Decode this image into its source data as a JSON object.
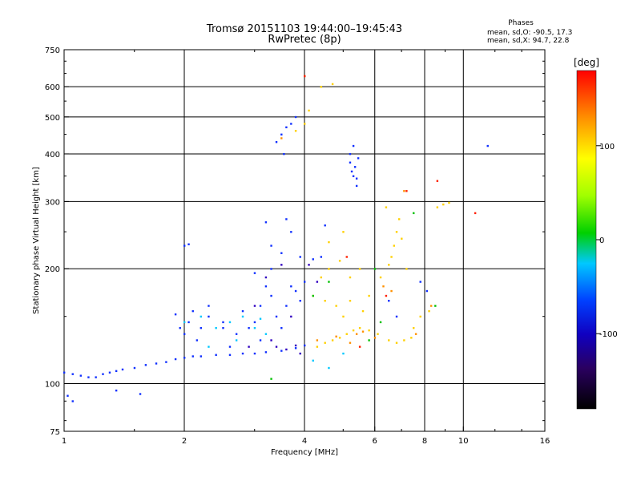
{
  "chart_data": {
    "type": "scatter",
    "title": "Tromsø 20151103 19:44:00–19:45:43",
    "subtitle": "RwPretec (8p)",
    "xlabel": "Frequency [MHz]",
    "ylabel": "Stationary phase Virtual Height [km]",
    "x_scale": "log2",
    "y_scale": "log",
    "xlim": [
      1,
      16
    ],
    "ylim": [
      75,
      750
    ],
    "xticks": [
      1,
      2,
      4,
      6,
      8,
      10,
      16
    ],
    "yticks": [
      75,
      100,
      200,
      300,
      400,
      500,
      600,
      750
    ],
    "grid_x": [
      2,
      4,
      6,
      8,
      10
    ],
    "grid_y": [
      100,
      200,
      300,
      400,
      500,
      600
    ],
    "stats": {
      "header": "Phases",
      "line_o": "mean, sd,O: -90.5, 17.3",
      "line_x": "mean, sd,X: 94.7, 22.8"
    },
    "colorbar": {
      "label": "[deg]",
      "range": [
        -180,
        180
      ],
      "ticks": [
        "100",
        "0",
        "-100"
      ],
      "tick_values": [
        100,
        0,
        -100
      ]
    },
    "series": [
      {
        "color": "#1030ff",
        "phase": -100,
        "points": [
          [
            1.0,
            107
          ],
          [
            1.05,
            106
          ],
          [
            1.1,
            105
          ],
          [
            1.15,
            104
          ],
          [
            1.2,
            104
          ],
          [
            1.25,
            106
          ],
          [
            1.3,
            107
          ],
          [
            1.35,
            108
          ],
          [
            1.4,
            109
          ],
          [
            1.5,
            110
          ],
          [
            1.6,
            112
          ],
          [
            1.7,
            113
          ],
          [
            1.8,
            114
          ],
          [
            1.9,
            116
          ],
          [
            2.0,
            117
          ],
          [
            2.1,
            118
          ],
          [
            2.2,
            118
          ],
          [
            2.4,
            119
          ],
          [
            2.6,
            119
          ],
          [
            2.8,
            120
          ],
          [
            3.0,
            120
          ],
          [
            3.2,
            121
          ],
          [
            3.5,
            122
          ],
          [
            3.8,
            124
          ],
          [
            4.0,
            126
          ],
          [
            1.02,
            93
          ],
          [
            1.05,
            90
          ],
          [
            1.35,
            96
          ],
          [
            1.55,
            94
          ],
          [
            1.9,
            152
          ],
          [
            1.95,
            140
          ],
          [
            2.0,
            135
          ],
          [
            2.05,
            145
          ],
          [
            2.1,
            155
          ],
          [
            2.15,
            130
          ],
          [
            2.3,
            150
          ],
          [
            2.5,
            140
          ],
          [
            2.7,
            135
          ],
          [
            2.9,
            140
          ],
          [
            3.0,
            145
          ],
          [
            3.1,
            160
          ],
          [
            3.2,
            180
          ],
          [
            3.3,
            170
          ],
          [
            3.4,
            150
          ],
          [
            3.5,
            140
          ],
          [
            3.6,
            160
          ],
          [
            3.7,
            180
          ],
          [
            3.8,
            175
          ],
          [
            3.9,
            165
          ],
          [
            4.0,
            185
          ],
          [
            3.3,
            200
          ],
          [
            3.5,
            220
          ],
          [
            3.7,
            250
          ],
          [
            3.9,
            215
          ],
          [
            4.2,
            212
          ],
          [
            4.4,
            215
          ],
          [
            3.2,
            265
          ],
          [
            3.6,
            270
          ],
          [
            2.0,
            230
          ],
          [
            2.05,
            232
          ],
          [
            3.4,
            430
          ],
          [
            3.5,
            450
          ],
          [
            3.6,
            470
          ],
          [
            3.7,
            480
          ],
          [
            3.8,
            500
          ],
          [
            3.55,
            400
          ],
          [
            5.2,
            380
          ],
          [
            5.25,
            360
          ],
          [
            5.3,
            350
          ],
          [
            5.35,
            370
          ],
          [
            5.4,
            345
          ],
          [
            5.45,
            390
          ],
          [
            5.2,
            400
          ],
          [
            5.3,
            420
          ],
          [
            5.4,
            330
          ],
          [
            2.5,
            145
          ],
          [
            2.8,
            155
          ],
          [
            3.1,
            130
          ],
          [
            4.5,
            260
          ],
          [
            2.3,
            160
          ],
          [
            2.6,
            125
          ],
          [
            2.2,
            140
          ],
          [
            3.0,
            195
          ],
          [
            3.3,
            230
          ],
          [
            8.1,
            175
          ],
          [
            7.8,
            185
          ],
          [
            6.5,
            165
          ],
          [
            6.8,
            150
          ],
          [
            11.5,
            420
          ]
        ]
      },
      {
        "color": "#3000c0",
        "phase": -135,
        "points": [
          [
            3.4,
            125
          ],
          [
            3.6,
            123
          ],
          [
            3.8,
            126
          ],
          [
            3.2,
            190
          ],
          [
            3.5,
            205
          ],
          [
            3.7,
            150
          ],
          [
            3.9,
            120
          ],
          [
            4.1,
            205
          ],
          [
            4.3,
            185
          ],
          [
            3.3,
            130
          ],
          [
            2.9,
            125
          ],
          [
            3.0,
            160
          ]
        ]
      },
      {
        "color": "#ffd000",
        "phase": 100,
        "points": [
          [
            4.3,
            125
          ],
          [
            4.5,
            128
          ],
          [
            4.7,
            130
          ],
          [
            4.9,
            132
          ],
          [
            5.1,
            135
          ],
          [
            5.3,
            138
          ],
          [
            5.5,
            140
          ],
          [
            5.8,
            138
          ],
          [
            6.1,
            135
          ],
          [
            6.5,
            130
          ],
          [
            6.8,
            128
          ],
          [
            7.1,
            130
          ],
          [
            7.4,
            132
          ],
          [
            4.2,
            170
          ],
          [
            4.5,
            165
          ],
          [
            4.8,
            160
          ],
          [
            5.0,
            150
          ],
          [
            5.2,
            165
          ],
          [
            4.4,
            190
          ],
          [
            4.6,
            200
          ],
          [
            4.9,
            210
          ],
          [
            5.2,
            190
          ],
          [
            5.5,
            200
          ],
          [
            5.6,
            155
          ],
          [
            5.8,
            170
          ],
          [
            6.5,
            205
          ],
          [
            6.6,
            215
          ],
          [
            6.7,
            230
          ],
          [
            6.8,
            250
          ],
          [
            6.9,
            270
          ],
          [
            7.0,
            240
          ],
          [
            6.4,
            290
          ],
          [
            7.5,
            140
          ],
          [
            7.8,
            150
          ],
          [
            8.2,
            155
          ],
          [
            8.6,
            290
          ],
          [
            8.9,
            295
          ],
          [
            9.2,
            298
          ],
          [
            4.0,
            480
          ],
          [
            4.1,
            520
          ],
          [
            4.4,
            600
          ],
          [
            4.7,
            610
          ],
          [
            3.8,
            460
          ],
          [
            4.6,
            235
          ],
          [
            5.0,
            250
          ],
          [
            6.2,
            190
          ],
          [
            7.2,
            200
          ]
        ]
      },
      {
        "color": "#ff9000",
        "phase": 140,
        "points": [
          [
            4.3,
            130
          ],
          [
            4.8,
            133
          ],
          [
            5.2,
            128
          ],
          [
            5.6,
            137
          ],
          [
            6.0,
            132
          ],
          [
            6.3,
            180
          ],
          [
            6.6,
            175
          ],
          [
            7.1,
            320
          ],
          [
            4.0,
            640
          ],
          [
            3.5,
            440
          ],
          [
            5.4,
            135
          ],
          [
            8.3,
            160
          ],
          [
            7.6,
            135
          ]
        ]
      },
      {
        "color": "#00c000",
        "phase": 20,
        "points": [
          [
            4.6,
            185
          ],
          [
            6.0,
            200
          ],
          [
            7.5,
            280
          ],
          [
            4.2,
            170
          ],
          [
            5.8,
            130
          ],
          [
            3.3,
            103
          ],
          [
            6.2,
            145
          ],
          [
            8.5,
            160
          ]
        ]
      },
      {
        "color": "#00c8ff",
        "phase": -50,
        "points": [
          [
            2.2,
            150
          ],
          [
            2.4,
            140
          ],
          [
            2.6,
            145
          ],
          [
            2.8,
            150
          ],
          [
            3.0,
            140
          ],
          [
            3.2,
            135
          ],
          [
            2.3,
            125
          ],
          [
            4.2,
            115
          ],
          [
            4.6,
            110
          ],
          [
            5.0,
            120
          ],
          [
            2.0,
            145
          ],
          [
            2.7,
            130
          ],
          [
            3.1,
            148
          ]
        ]
      },
      {
        "color": "#ff2000",
        "phase": 170,
        "points": [
          [
            4.0,
            640
          ],
          [
            7.2,
            320
          ],
          [
            8.6,
            340
          ],
          [
            6.4,
            170
          ],
          [
            5.5,
            125
          ],
          [
            10.7,
            280
          ],
          [
            5.1,
            215
          ]
        ]
      }
    ]
  }
}
